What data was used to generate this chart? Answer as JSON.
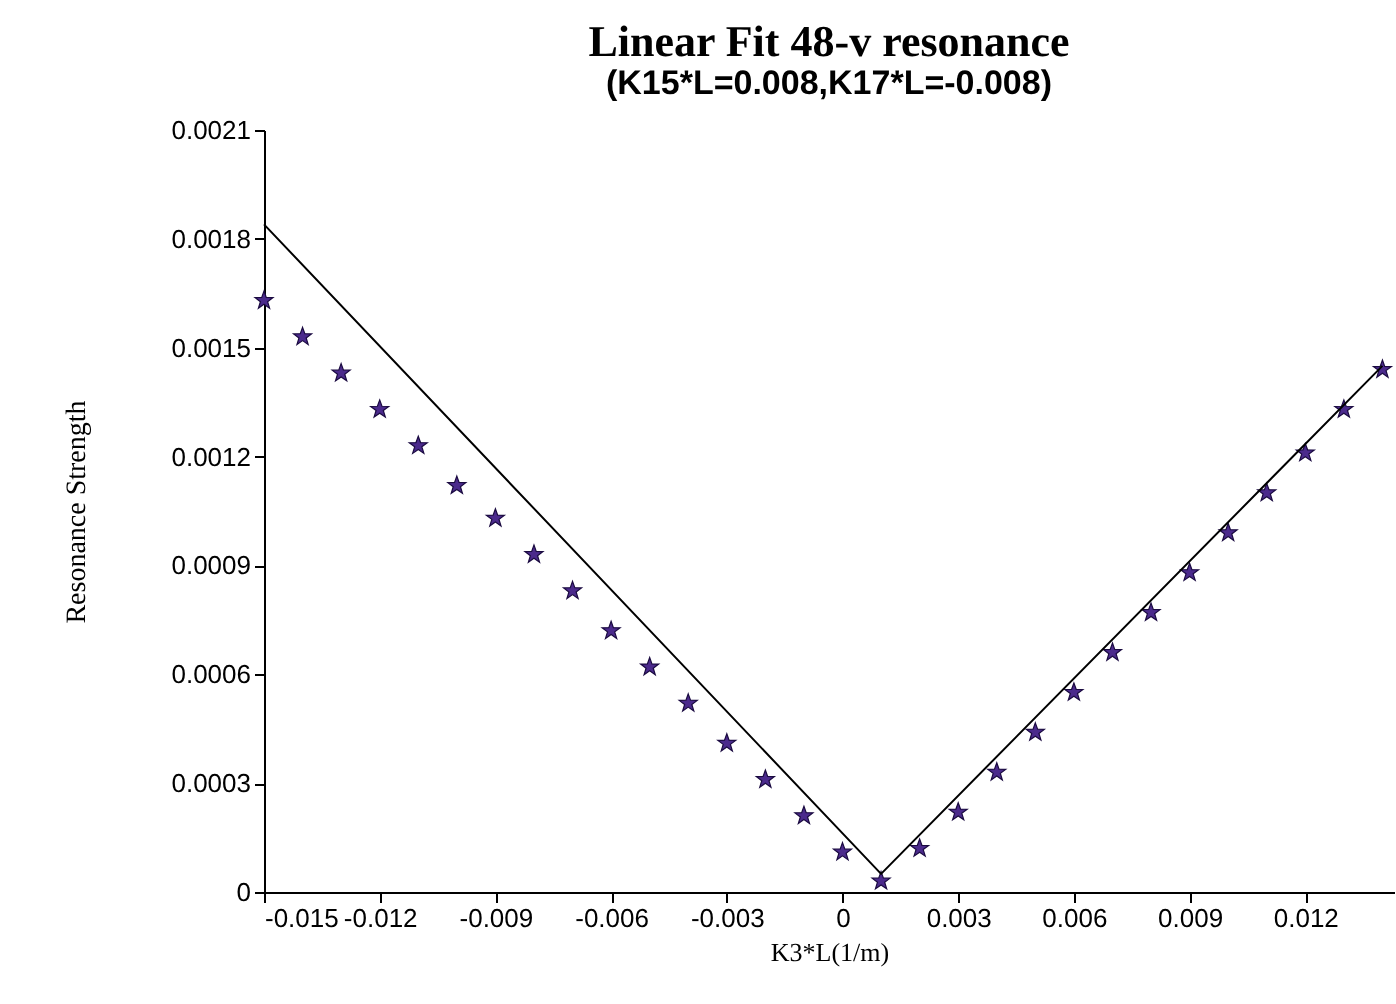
{
  "chart_data": {
    "type": "scatter",
    "title": "Linear Fit 48-v resonance",
    "subtitle": "(K15*L=0.008,K17*L=-0.008)",
    "xlabel": "K3*L(1/m)",
    "ylabel": "Resonance Strength",
    "x": [
      -0.015,
      -0.014,
      -0.013,
      -0.012,
      -0.011,
      -0.01,
      -0.009,
      -0.008,
      -0.007,
      -0.006,
      -0.005,
      -0.004,
      -0.003,
      -0.002,
      -0.001,
      0,
      0.001,
      0.002,
      0.003,
      0.004,
      0.005,
      0.006,
      0.007,
      0.008,
      0.009,
      0.01,
      0.011,
      0.012,
      0.013,
      0.014
    ],
    "series": [
      {
        "color": "#4b2a8c",
        "marker": "star",
        "values": [
          0.00163,
          0.00153,
          0.00143,
          0.00133,
          0.00123,
          0.00112,
          0.00103,
          0.00093,
          0.00083,
          0.00072,
          0.00062,
          0.00052,
          0.00041,
          0.00031,
          0.00021,
          0.00011,
          3e-05,
          0.00012,
          0.00022,
          0.00033,
          0.00044,
          0.00055,
          0.00066,
          0.00077,
          0.00088,
          0.00099,
          0.0011,
          0.00121,
          0.00133,
          0.00144
        ]
      },
      {
        "type": "line",
        "color": "#000000",
        "x": [
          -0.015,
          0.001,
          0.014
        ],
        "values": [
          0.00184,
          5e-05,
          0.00145
        ]
      }
    ],
    "xlim": [
      -0.015,
      0.0143
    ],
    "xticks": [
      -0.015,
      -0.012,
      -0.009,
      -0.006,
      -0.003,
      0,
      0.003,
      0.006,
      0.009,
      0.012
    ],
    "ylim": [
      0,
      0.0021
    ],
    "yticks": [
      0,
      0.0003,
      0.0006,
      0.0009,
      0.0012,
      0.0015,
      0.0018,
      0.0021
    ],
    "grid": false
  }
}
